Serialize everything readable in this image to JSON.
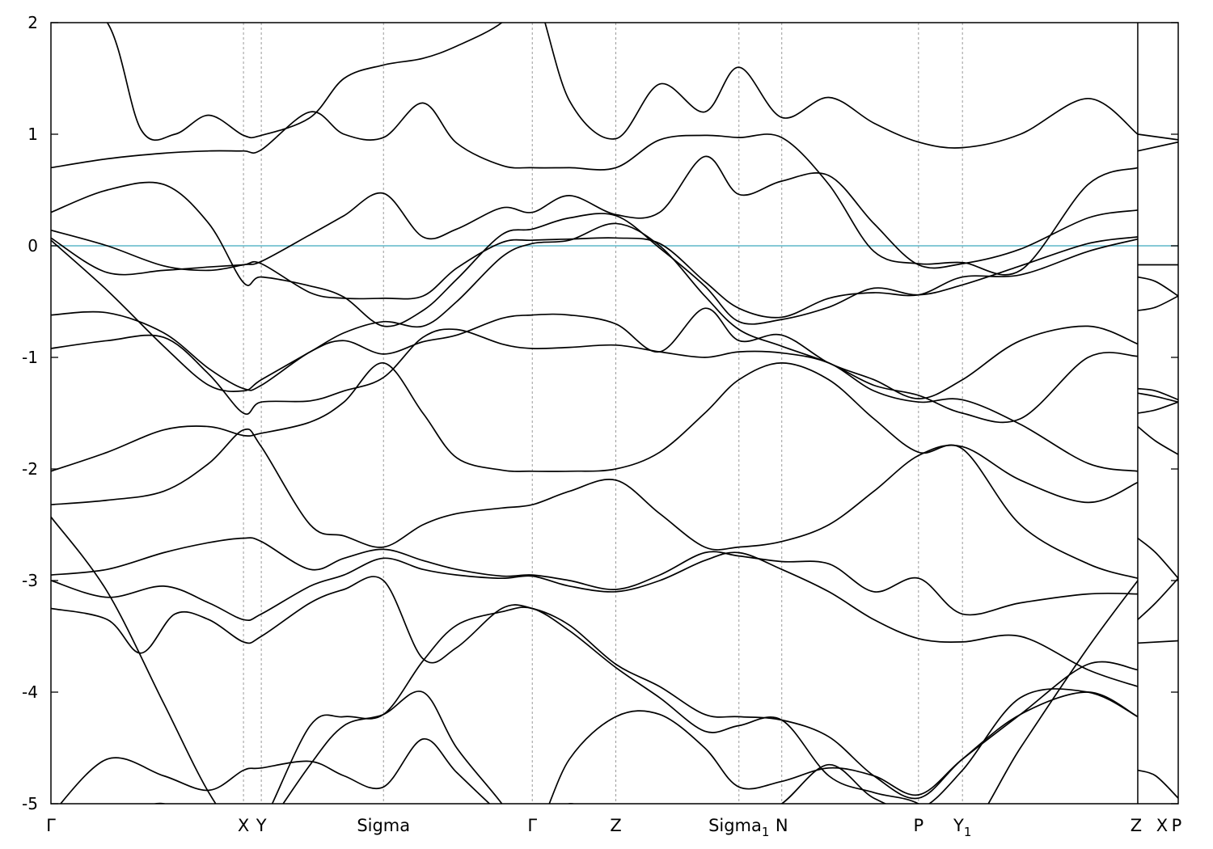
{
  "chart_data": {
    "type": "line",
    "title": "",
    "xlabel": "",
    "ylabel": "",
    "ylim": [
      -5,
      2
    ],
    "xlim": [
      0,
      1
    ],
    "yticks": [
      {
        "value": 2,
        "label": "2"
      },
      {
        "value": 1,
        "label": "1"
      },
      {
        "value": 0,
        "label": "0"
      },
      {
        "value": -1,
        "label": "-1"
      },
      {
        "value": -2,
        "label": "-2"
      },
      {
        "value": -3,
        "label": "-3"
      },
      {
        "value": -4,
        "label": "-4"
      },
      {
        "value": -5,
        "label": "-5"
      }
    ],
    "kpoints": [
      {
        "x": 0.0,
        "label": "Γ",
        "sub": ""
      },
      {
        "x": 0.1708,
        "label": "X",
        "sub": ""
      },
      {
        "x": 0.1866,
        "label": "Y",
        "sub": ""
      },
      {
        "x": 0.295,
        "label": "Sigma",
        "sub": ""
      },
      {
        "x": 0.427,
        "label": "Γ",
        "sub": ""
      },
      {
        "x": 0.5011,
        "label": "Z",
        "sub": ""
      },
      {
        "x": 0.6103,
        "label": "Sigma",
        "sub": "1"
      },
      {
        "x": 0.6483,
        "label": "N",
        "sub": ""
      },
      {
        "x": 0.7696,
        "label": "P",
        "sub": ""
      },
      {
        "x": 0.8086,
        "label": "Y",
        "sub": "1"
      },
      {
        "x": 0.9641,
        "label": "Z",
        "sub": ""
      },
      {
        "x": 0.9641,
        "label": "X",
        "sub": ""
      },
      {
        "x": 1.0,
        "label": "P",
        "sub": ""
      }
    ],
    "grid": {
      "x": true,
      "y": false
    },
    "path_break_x": 0.9641,
    "fermi_level": {
      "y": 0,
      "color": "#5fb7c9"
    },
    "band_color": "#000000",
    "series": [
      {
        "x": [
          0.0,
          0.05,
          0.1,
          0.14,
          0.1708,
          0.1866,
          0.23,
          0.26,
          0.295,
          0.33,
          0.36,
          0.4,
          0.427,
          0.46,
          0.5011,
          0.54,
          0.58,
          0.6103,
          0.6483,
          0.69,
          0.73,
          0.7696,
          0.8086,
          0.86,
          0.92,
          0.9641
        ],
        "values": [
          0.07,
          -0.24,
          -0.22,
          -0.19,
          -0.17,
          -0.16,
          -0.42,
          -0.47,
          -0.47,
          -0.45,
          -0.2,
          0.03,
          0.05,
          0.06,
          0.07,
          0.02,
          -0.32,
          -0.56,
          -0.64,
          -0.47,
          -0.42,
          -0.44,
          -0.28,
          -0.26,
          -0.05,
          0.06
        ]
      },
      {
        "x": [
          0.9641,
          1.0
        ],
        "values": [
          -0.17,
          -0.17
        ]
      },
      {
        "x": [
          0.0,
          0.05,
          0.1,
          0.14,
          0.1708,
          0.1866,
          0.23,
          0.26,
          0.295,
          0.33,
          0.36,
          0.4,
          0.427,
          0.46,
          0.5011,
          0.54,
          0.58,
          0.6103,
          0.6483,
          0.69,
          0.73,
          0.7696,
          0.8086,
          0.86,
          0.92,
          0.9641
        ],
        "values": [
          0.14,
          0.0,
          -0.18,
          -0.22,
          -0.17,
          -0.14,
          0.1,
          0.27,
          0.47,
          0.08,
          0.15,
          0.34,
          0.3,
          0.45,
          0.28,
          0.3,
          0.8,
          0.46,
          0.58,
          0.63,
          0.2,
          -0.17,
          -0.16,
          -0.03,
          0.25,
          0.32
        ]
      },
      {
        "x": [
          0.0,
          0.05,
          0.1,
          0.14,
          0.1708,
          0.1866,
          0.23,
          0.26,
          0.295,
          0.33,
          0.36,
          0.4,
          0.427,
          0.46,
          0.5011,
          0.54,
          0.58,
          0.6103,
          0.6483,
          0.69,
          0.73,
          0.7696,
          0.8086,
          0.86,
          0.92,
          0.9641
        ],
        "values": [
          0.3,
          0.5,
          0.55,
          0.2,
          -0.33,
          -0.28,
          -0.36,
          -0.46,
          -0.72,
          -0.58,
          -0.3,
          0.1,
          0.15,
          0.25,
          0.27,
          -0.02,
          -0.36,
          -0.68,
          -0.66,
          -0.55,
          -0.38,
          -0.44,
          -0.35,
          -0.18,
          0.02,
          0.08
        ]
      },
      {
        "x": [
          0.0,
          0.05,
          0.1,
          0.14,
          0.1708,
          0.1866,
          0.23,
          0.26,
          0.295,
          0.33,
          0.36,
          0.4,
          0.427,
          0.46,
          0.5011,
          0.54,
          0.58,
          0.6103,
          0.6483,
          0.69,
          0.73,
          0.7696,
          0.8086,
          0.86,
          0.92,
          0.9641
        ],
        "values": [
          0.7,
          0.78,
          0.83,
          0.85,
          0.85,
          0.86,
          1.2,
          1.0,
          0.97,
          1.28,
          0.92,
          0.72,
          0.7,
          0.7,
          0.7,
          0.95,
          0.99,
          0.97,
          0.97,
          0.55,
          -0.05,
          -0.16,
          -0.15,
          -0.22,
          0.55,
          0.7
        ]
      },
      {
        "x": [
          0.9641,
          1.0
        ],
        "values": [
          0.85,
          0.93
        ]
      },
      {
        "x": [
          0.0,
          0.05,
          0.08,
          0.11,
          0.14,
          0.1708,
          0.1866,
          0.23,
          0.26,
          0.295,
          0.33,
          0.36,
          0.4,
          0.427,
          0.46,
          0.5011,
          0.54,
          0.58,
          0.6103,
          0.6483,
          0.69,
          0.73,
          0.7696,
          0.8086,
          0.86,
          0.92,
          0.9641
        ],
        "values": [
          2.3,
          2.0,
          1.04,
          1.0,
          1.17,
          0.99,
          0.99,
          1.15,
          1.5,
          1.62,
          1.68,
          1.79,
          2.0,
          2.3,
          1.3,
          0.96,
          1.45,
          1.2,
          1.6,
          1.15,
          1.33,
          1.1,
          0.93,
          0.88,
          1.0,
          1.32,
          1.0
        ]
      },
      {
        "x": [
          0.9641,
          1.0
        ],
        "values": [
          1.0,
          0.95
        ]
      },
      {
        "x": [
          0.0,
          0.05,
          0.1,
          0.14,
          0.1708,
          0.1866,
          0.23,
          0.26,
          0.295,
          0.33,
          0.36,
          0.4,
          0.427,
          0.46,
          0.5011,
          0.54,
          0.58,
          0.6103,
          0.6483,
          0.69,
          0.73,
          0.7696,
          0.8086,
          0.86,
          0.92,
          0.9641
        ],
        "values": [
          -0.62,
          -0.6,
          -0.78,
          -1.1,
          -1.28,
          -1.25,
          -0.95,
          -0.85,
          -0.97,
          -0.86,
          -0.8,
          -0.65,
          -0.62,
          -0.62,
          -0.7,
          -0.95,
          -0.56,
          -0.85,
          -0.8,
          -1.05,
          -1.2,
          -1.37,
          -1.2,
          -0.85,
          -0.72,
          -0.88
        ]
      },
      {
        "x": [
          0.0,
          0.05,
          0.1,
          0.14,
          0.1708,
          0.1866,
          0.23,
          0.26,
          0.295,
          0.33,
          0.36,
          0.4,
          0.427,
          0.46,
          0.5011,
          0.54,
          0.58,
          0.6103,
          0.6483,
          0.69,
          0.73,
          0.7696,
          0.8086,
          0.86,
          0.92,
          0.9641
        ],
        "values": [
          -0.92,
          -0.85,
          -0.82,
          -1.15,
          -1.5,
          -1.4,
          -1.39,
          -1.3,
          -1.18,
          -0.82,
          -0.75,
          -0.88,
          -0.92,
          -0.91,
          -0.89,
          -0.95,
          -1.0,
          -0.95,
          -0.96,
          -1.05,
          -1.3,
          -1.4,
          -1.38,
          -1.6,
          -1.95,
          -2.02
        ]
      },
      {
        "x": [
          0.0,
          0.05,
          0.1,
          0.14,
          0.1708,
          0.1866,
          0.23,
          0.26,
          0.295,
          0.33,
          0.36,
          0.4,
          0.427,
          0.46,
          0.5011,
          0.54,
          0.58,
          0.6103,
          0.6483,
          0.69,
          0.73,
          0.7696,
          0.8086,
          0.86,
          0.92,
          0.9641
        ],
        "values": [
          0.05,
          -0.4,
          -0.9,
          -1.25,
          -1.3,
          -1.2,
          -0.95,
          -0.78,
          -0.68,
          -0.72,
          -0.5,
          -0.1,
          0.02,
          0.05,
          0.2,
          0.0,
          -0.45,
          -0.75,
          -0.9,
          -1.05,
          -1.25,
          -1.34,
          -1.5,
          -1.55,
          -1.0,
          -0.99
        ]
      },
      {
        "x": [
          0.0,
          0.05,
          0.1,
          0.14,
          0.1708,
          0.1866,
          0.23,
          0.26,
          0.295,
          0.33,
          0.36,
          0.4,
          0.427,
          0.46,
          0.5011,
          0.54,
          0.58,
          0.6103,
          0.6483,
          0.69,
          0.73,
          0.7696,
          0.8086,
          0.86,
          0.92,
          0.9641
        ],
        "values": [
          -2.02,
          -1.85,
          -1.65,
          -1.62,
          -1.7,
          -1.68,
          -1.58,
          -1.4,
          -1.05,
          -1.5,
          -1.9,
          -2.01,
          -2.02,
          -2.02,
          -2.0,
          -1.85,
          -1.5,
          -1.2,
          -1.05,
          -1.2,
          -1.55,
          -1.85,
          -1.82,
          -2.5,
          -2.85,
          -2.98
        ]
      },
      {
        "x": [
          0.0,
          0.05,
          0.1,
          0.14,
          0.1708,
          0.1866,
          0.23,
          0.26,
          0.295,
          0.33,
          0.36,
          0.4,
          0.427,
          0.46,
          0.5011,
          0.54,
          0.58,
          0.6103,
          0.6483,
          0.69,
          0.73,
          0.7696,
          0.8086,
          0.86,
          0.92,
          0.9641
        ],
        "values": [
          -2.32,
          -2.28,
          -2.2,
          -1.95,
          -1.65,
          -1.8,
          -2.5,
          -2.6,
          -2.7,
          -2.5,
          -2.4,
          -2.35,
          -2.32,
          -2.2,
          -2.1,
          -2.4,
          -2.7,
          -2.7,
          -2.65,
          -2.5,
          -2.2,
          -1.88,
          -1.8,
          -2.1,
          -2.3,
          -2.12
        ]
      },
      {
        "x": [
          0.0,
          0.05,
          0.1,
          0.14,
          0.1708,
          0.1866,
          0.23,
          0.26,
          0.295,
          0.33,
          0.36,
          0.4,
          0.427,
          0.46,
          0.5011,
          0.54,
          0.58,
          0.6103,
          0.6483,
          0.69,
          0.73,
          0.7696,
          0.8086,
          0.86,
          0.92,
          0.9641
        ],
        "values": [
          -2.95,
          -2.9,
          -2.75,
          -2.66,
          -2.62,
          -2.65,
          -2.9,
          -2.8,
          -2.72,
          -2.82,
          -2.9,
          -2.96,
          -2.95,
          -3.0,
          -3.08,
          -2.95,
          -2.75,
          -2.78,
          -2.83,
          -2.85,
          -3.1,
          -2.98,
          -3.3,
          -3.2,
          -3.12,
          -3.12
        ]
      },
      {
        "x": [
          0.0,
          0.05,
          0.1,
          0.14,
          0.1708,
          0.1866,
          0.23,
          0.26,
          0.295,
          0.33,
          0.36,
          0.4,
          0.427,
          0.46,
          0.5011,
          0.54,
          0.58,
          0.6103,
          0.6483,
          0.69,
          0.73,
          0.7696,
          0.8086,
          0.86,
          0.92,
          0.9641
        ],
        "values": [
          -3.0,
          -3.15,
          -3.05,
          -3.2,
          -3.35,
          -3.3,
          -3.05,
          -2.95,
          -2.8,
          -2.9,
          -2.95,
          -2.98,
          -2.96,
          -3.05,
          -3.1,
          -3.0,
          -2.82,
          -2.75,
          -2.9,
          -3.1,
          -3.35,
          -3.52,
          -3.55,
          -3.5,
          -3.8,
          -3.95
        ]
      },
      {
        "x": [
          0.0,
          0.05,
          0.08,
          0.11,
          0.14,
          0.1708,
          0.1866,
          0.23,
          0.26,
          0.295,
          0.33,
          0.36,
          0.4,
          0.427,
          0.46,
          0.5011,
          0.54,
          0.58,
          0.6103,
          0.6483,
          0.69,
          0.73,
          0.7696,
          0.8086,
          0.86,
          0.92,
          0.9641
        ],
        "values": [
          -3.25,
          -3.35,
          -3.65,
          -3.3,
          -3.35,
          -3.55,
          -3.5,
          -3.2,
          -3.08,
          -3.0,
          -3.7,
          -3.6,
          -3.25,
          -3.25,
          -3.4,
          -3.75,
          -3.95,
          -4.2,
          -4.22,
          -4.25,
          -4.4,
          -4.75,
          -4.95,
          -4.6,
          -4.2,
          -4.0,
          -4.22
        ]
      },
      {
        "x": [
          0.0,
          0.05,
          0.1,
          0.14,
          0.1708,
          0.1866,
          0.23,
          0.26,
          0.295,
          0.33,
          0.36,
          0.4,
          0.427,
          0.46,
          0.5011,
          0.54,
          0.58,
          0.6103,
          0.6483,
          0.69,
          0.73,
          0.7696,
          0.8086,
          0.86,
          0.92,
          0.9641
        ],
        "values": [
          -2.43,
          -3.1,
          -4.1,
          -4.9,
          -5.3,
          -5.2,
          -4.3,
          -4.22,
          -4.2,
          -3.72,
          -3.4,
          -3.28,
          -3.25,
          -3.45,
          -3.78,
          -4.05,
          -4.35,
          -4.3,
          -4.25,
          -4.75,
          -4.9,
          -5.0,
          -5.3,
          -4.5,
          -3.6,
          -3.0
        ]
      },
      {
        "x": [
          0.0,
          0.05,
          0.1,
          0.14,
          0.1708,
          0.1866,
          0.23,
          0.26,
          0.295,
          0.33,
          0.36,
          0.4,
          0.427,
          0.46,
          0.5011,
          0.54,
          0.58,
          0.6103,
          0.6483,
          0.69,
          0.73,
          0.7696,
          0.8086,
          0.86,
          0.92,
          0.9641
        ],
        "values": [
          -5.1,
          -4.6,
          -4.75,
          -4.88,
          -4.7,
          -4.68,
          -4.62,
          -4.75,
          -4.85,
          -4.42,
          -4.72,
          -5.1,
          -5.3,
          -4.6,
          -4.22,
          -4.2,
          -4.5,
          -4.85,
          -4.8,
          -4.68,
          -4.75,
          -4.92,
          -4.6,
          -4.2,
          -3.75,
          -3.8
        ]
      },
      {
        "x": [
          0.0,
          0.05,
          0.1,
          0.14,
          0.1708,
          0.1866,
          0.23,
          0.26,
          0.295,
          0.33,
          0.36,
          0.4,
          0.427,
          0.46,
          0.5011,
          0.54,
          0.58,
          0.6103,
          0.6483,
          0.69,
          0.73,
          0.7696,
          0.8086,
          0.86,
          0.92,
          0.9641
        ],
        "values": [
          -5.4,
          -5.2,
          -5.0,
          -5.35,
          -5.6,
          -5.3,
          -4.65,
          -4.3,
          -4.2,
          -4.0,
          -4.5,
          -5.0,
          -5.4,
          -5.0,
          -5.3,
          -5.5,
          -5.4,
          -5.2,
          -5.0,
          -4.65,
          -4.95,
          -5.05,
          -4.7,
          -4.05,
          -4.0,
          -4.22
        ]
      },
      {
        "x": [
          0.9641,
          0.98,
          1.0
        ],
        "values": [
          -0.28,
          -0.32,
          -0.45
        ]
      },
      {
        "x": [
          0.9641,
          0.98,
          1.0
        ],
        "values": [
          -0.58,
          -0.55,
          -0.45
        ]
      },
      {
        "x": [
          0.9641,
          0.98,
          1.0
        ],
        "values": [
          -1.28,
          -1.3,
          -1.38
        ]
      },
      {
        "x": [
          0.9641,
          0.98,
          1.0
        ],
        "values": [
          -1.32,
          -1.35,
          -1.4
        ]
      },
      {
        "x": [
          0.9641,
          0.98,
          1.0
        ],
        "values": [
          -1.5,
          -1.47,
          -1.4
        ]
      },
      {
        "x": [
          0.9641,
          0.98,
          1.0
        ],
        "values": [
          -1.62,
          -1.75,
          -1.87
        ]
      },
      {
        "x": [
          0.9641,
          0.98,
          1.0
        ],
        "values": [
          -2.62,
          -2.75,
          -2.98
        ]
      },
      {
        "x": [
          0.9641,
          0.98,
          1.0
        ],
        "values": [
          -3.35,
          -3.2,
          -2.98
        ]
      },
      {
        "x": [
          0.9641,
          1.0
        ],
        "values": [
          -3.56,
          -3.54
        ]
      },
      {
        "x": [
          0.9641,
          0.98,
          1.0
        ],
        "values": [
          -4.7,
          -4.75,
          -4.95
        ]
      }
    ]
  }
}
